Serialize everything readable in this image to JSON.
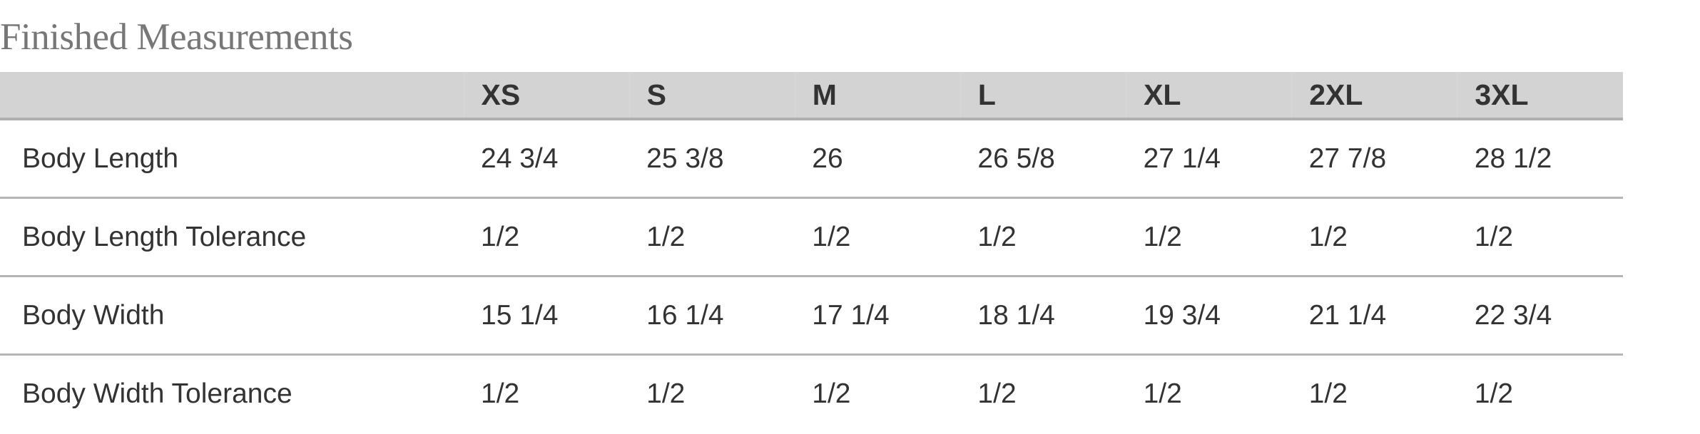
{
  "title": "Finished Measurements",
  "table": {
    "headers": [
      "",
      "XS",
      "S",
      "M",
      "L",
      "XL",
      "2XL",
      "3XL"
    ],
    "rows": [
      {
        "label": "Body Length",
        "values": [
          "24 3/4",
          "25 3/8",
          "26",
          "26 5/8",
          "27 1/4",
          "27 7/8",
          "28 1/2"
        ]
      },
      {
        "label": "Body Length Tolerance",
        "values": [
          "1/2",
          "1/2",
          "1/2",
          "1/2",
          "1/2",
          "1/2",
          "1/2"
        ]
      },
      {
        "label": "Body Width",
        "values": [
          "15 1/4",
          "16 1/4",
          "17 1/4",
          "18 1/4",
          "19 3/4",
          "21 1/4",
          "22 3/4"
        ]
      },
      {
        "label": "Body Width Tolerance",
        "values": [
          "1/2",
          "1/2",
          "1/2",
          "1/2",
          "1/2",
          "1/2",
          "1/2"
        ]
      }
    ]
  },
  "colors": {
    "header_bg": "#d3d3d3",
    "text": "#333333",
    "title": "#777777"
  }
}
